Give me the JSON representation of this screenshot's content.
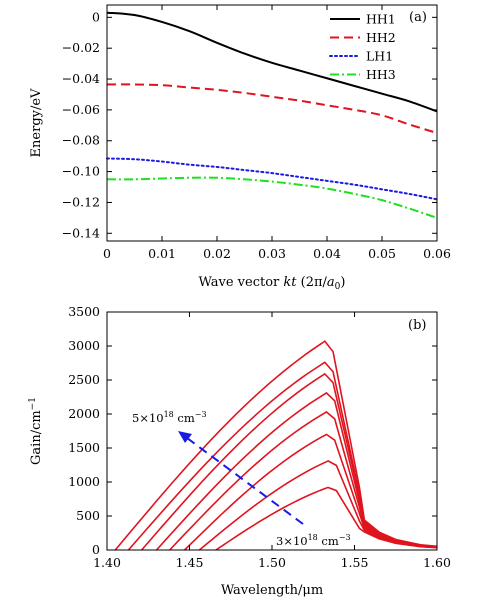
{
  "chart_data": [
    {
      "type": "line",
      "panel_label": "(a)",
      "xlabel": "Wave vector kt (2π/a0)",
      "xlabel_parts": {
        "main": "Wave vector ",
        "k": "kt",
        "paren_open": " (2π/",
        "a": "a",
        "sub": "0",
        "paren_close": ")"
      },
      "ylabel": "Energy/eV",
      "xlim": [
        0,
        0.06
      ],
      "ylim": [
        -0.145,
        0.008
      ],
      "xticks": [
        0,
        0.01,
        0.02,
        0.03,
        0.04,
        0.05,
        0.06
      ],
      "xtick_labels": [
        "0",
        "0.01",
        "0.02",
        "0.03",
        "0.04",
        "0.05",
        "0.06"
      ],
      "yticks": [
        0,
        -0.02,
        -0.04,
        -0.06,
        -0.08,
        -0.1,
        -0.12,
        -0.14
      ],
      "ytick_labels": [
        "0",
        "−0.02",
        "−0.04",
        "−0.06",
        "−0.08",
        "−0.10",
        "−0.12",
        "−0.14"
      ],
      "legend_position": "top-right",
      "series": [
        {
          "name": "HH1",
          "color": "#000000",
          "dash": "solid",
          "x": [
            0,
            0.005,
            0.01,
            0.015,
            0.02,
            0.025,
            0.03,
            0.035,
            0.04,
            0.045,
            0.05,
            0.055,
            0.06
          ],
          "y": [
            0.003,
            0.0015,
            -0.003,
            -0.009,
            -0.0165,
            -0.0235,
            -0.0295,
            -0.0345,
            -0.0395,
            -0.0445,
            -0.0495,
            -0.0545,
            -0.061
          ]
        },
        {
          "name": "HH2",
          "color": "#e0141e",
          "dash": "dashed",
          "x": [
            0,
            0.005,
            0.01,
            0.015,
            0.02,
            0.025,
            0.03,
            0.035,
            0.04,
            0.045,
            0.05,
            0.055,
            0.06
          ],
          "y": [
            -0.0435,
            -0.0435,
            -0.044,
            -0.0455,
            -0.047,
            -0.049,
            -0.0515,
            -0.054,
            -0.057,
            -0.06,
            -0.0635,
            -0.0695,
            -0.075
          ]
        },
        {
          "name": "LH1",
          "color": "#1a1ae6",
          "dash": "dotted",
          "x": [
            0,
            0.005,
            0.01,
            0.015,
            0.02,
            0.025,
            0.03,
            0.035,
            0.04,
            0.045,
            0.05,
            0.055,
            0.06
          ],
          "y": [
            -0.0915,
            -0.092,
            -0.0935,
            -0.0955,
            -0.097,
            -0.099,
            -0.101,
            -0.1035,
            -0.106,
            -0.1085,
            -0.1115,
            -0.1145,
            -0.118
          ]
        },
        {
          "name": "HH3",
          "color": "#1fe01f",
          "dash": "dashdot",
          "x": [
            0,
            0.005,
            0.01,
            0.015,
            0.02,
            0.025,
            0.03,
            0.035,
            0.04,
            0.045,
            0.05,
            0.055,
            0.06
          ],
          "y": [
            -0.105,
            -0.105,
            -0.1045,
            -0.104,
            -0.104,
            -0.105,
            -0.1065,
            -0.1085,
            -0.111,
            -0.1145,
            -0.1185,
            -0.124,
            -0.13
          ]
        }
      ]
    },
    {
      "type": "line",
      "panel_label": "(b)",
      "xlabel": "Wavelength/μm",
      "ylabel": "Gain/cm−1",
      "ylabel_parts": {
        "main": "Gain/cm",
        "sup": "−1"
      },
      "xlim": [
        1.4,
        1.6
      ],
      "ylim": [
        0,
        3500
      ],
      "xticks": [
        1.4,
        1.45,
        1.5,
        1.55,
        1.6
      ],
      "xtick_labels": [
        "1.40",
        "1.45",
        "1.50",
        "1.55",
        "1.60"
      ],
      "yticks": [
        0,
        500,
        1000,
        1500,
        2000,
        2500,
        3000,
        3500
      ],
      "ytick_labels": [
        "0",
        "500",
        "1000",
        "1500",
        "2000",
        "2500",
        "3000",
        "3500"
      ],
      "series_color": "#e0141e",
      "annotations": {
        "upper": {
          "text": "5×1018 cm−3",
          "base": "5×10",
          "exp": "18",
          "unit": " cm",
          "uexp": "−3"
        },
        "lower": {
          "text": "3×1018 cm−3",
          "base": "3×10",
          "exp": "18",
          "unit": " cm",
          "uexp": "−3"
        },
        "arrow_color": "#1a1ae6"
      },
      "series": [
        {
          "x0": 1.405,
          "peak_x": 1.532,
          "peak": 3070,
          "x1": 1.537
        },
        {
          "x0": 1.413,
          "peak_x": 1.532,
          "peak": 2760,
          "x1": 1.537
        },
        {
          "x0": 1.421,
          "peak_x": 1.532,
          "peak": 2590,
          "x1": 1.537
        },
        {
          "x0": 1.43,
          "peak_x": 1.533,
          "peak": 2310,
          "x1": 1.538
        },
        {
          "x0": 1.438,
          "peak_x": 1.533,
          "peak": 2030,
          "x1": 1.538
        },
        {
          "x0": 1.447,
          "peak_x": 1.533,
          "peak": 1700,
          "x1": 1.538
        },
        {
          "x0": 1.456,
          "peak_x": 1.534,
          "peak": 1310,
          "x1": 1.539
        },
        {
          "x0": 1.466,
          "peak_x": 1.534,
          "peak": 920,
          "x1": 1.539
        }
      ]
    }
  ]
}
